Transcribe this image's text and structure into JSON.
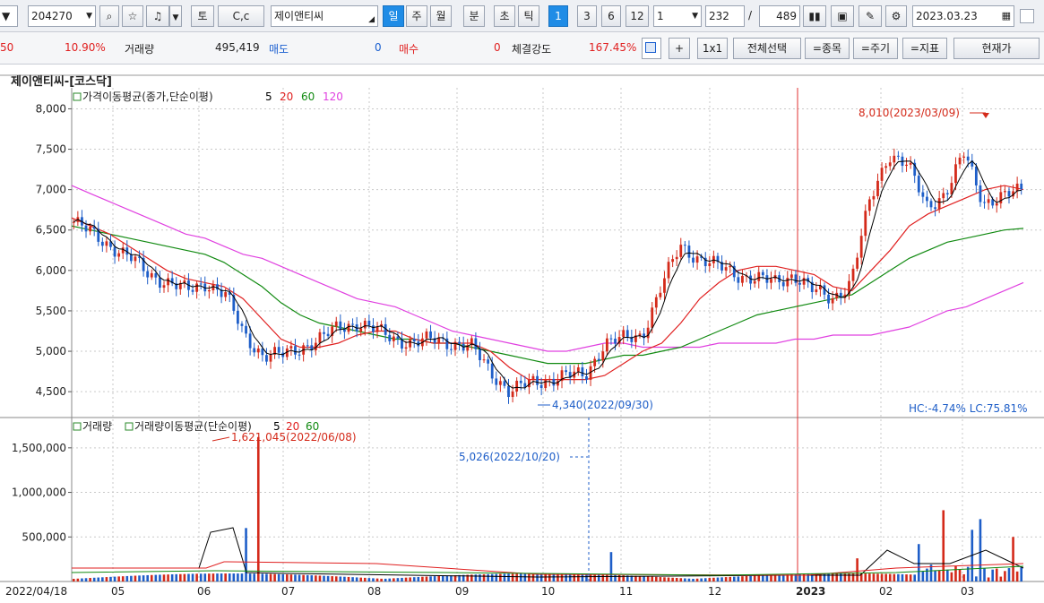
{
  "toolbar": {
    "code": "204270",
    "btn_t": "토",
    "btn_cc": "C,c",
    "stock_name": "제이앤티씨",
    "periods": [
      "일",
      "주",
      "월",
      "분",
      "초",
      "틱"
    ],
    "intervals": [
      "1",
      "3",
      "6",
      "12"
    ],
    "step": "1",
    "count": "232",
    "sep": "/",
    "total": "489",
    "date": "2023.03.23"
  },
  "quote": {
    "prev": "50",
    "rate": "10.90%",
    "vol_label": "거래량",
    "vol": "495,419",
    "sell_label": "매도",
    "sell": "0",
    "buy_label": "매수",
    "buy": "0",
    "strength_label": "체결강도",
    "strength": "167.45%",
    "btn_plus": "+",
    "btn_1x1": "1x1",
    "btn_all": "전체선택",
    "btn_item": "=종목",
    "btn_period": "=주기",
    "btn_indicator": "=지표",
    "btn_price": "현재가"
  },
  "chart_title": "제이앤티씨-[코스닥]",
  "colors": {
    "up": "#d42a1a",
    "down": "#1e5ec8",
    "ma5": "#000000",
    "ma20": "#e02020",
    "ma60": "#118a11",
    "ma120": "#e040e0"
  },
  "chart_data": [
    {
      "type": "candlestick",
      "legend_label": "가격이동평균(종가,단순이평)",
      "ma_periods": [
        "5",
        "20",
        "60",
        "120"
      ],
      "y_ticks": [
        8000,
        7500,
        7000,
        6500,
        6000,
        5500,
        5000,
        4500
      ],
      "y_tick_labels": [
        "8,000",
        "7,500",
        "7,000",
        "6,500",
        "6,000",
        "5,500",
        "5,000",
        "4,500"
      ],
      "ylim": [
        4180,
        8260
      ],
      "x_labels": [
        "2022/04/18",
        "05",
        "06",
        "07",
        "08",
        "09",
        "10",
        "11",
        "12",
        "2023",
        "02",
        "03"
      ],
      "close_series": [
        6600,
        6450,
        6300,
        6150,
        5950,
        5850,
        5750,
        5850,
        5700,
        5200,
        4950,
        4950,
        5050,
        5150,
        5300,
        5350,
        5250,
        5150,
        5100,
        5150,
        5100,
        5050,
        4750,
        4500,
        4600,
        4650,
        4700,
        4700,
        5100,
        5150,
        5200,
        5800,
        6300,
        6150,
        6050,
        5950,
        5900,
        5850,
        5950,
        5750,
        5650,
        5850,
        6850,
        7450,
        7300,
        6800,
        6950,
        7450,
        6850,
        6900,
        7000
      ],
      "ma20_series": [
        6650,
        6550,
        6450,
        6300,
        6150,
        6000,
        5900,
        5850,
        5800,
        5650,
        5400,
        5150,
        5050,
        5050,
        5100,
        5200,
        5250,
        5250,
        5150,
        5100,
        5100,
        5100,
        5000,
        4800,
        4650,
        4650,
        4650,
        4650,
        4700,
        4850,
        5000,
        5100,
        5350,
        5650,
        5850,
        6000,
        6050,
        6050,
        6000,
        5950,
        5800,
        5750,
        6000,
        6250,
        6550,
        6700,
        6800,
        6900,
        7000,
        7050,
        7000
      ],
      "ma60_series": [
        6550,
        6500,
        6450,
        6400,
        6350,
        6300,
        6250,
        6200,
        6100,
        5950,
        5800,
        5600,
        5450,
        5350,
        5300,
        5250,
        5200,
        5150,
        5150,
        5100,
        5100,
        5050,
        5000,
        4950,
        4900,
        4850,
        4850,
        4850,
        4900,
        4950,
        4950,
        5000,
        5050,
        5150,
        5250,
        5350,
        5450,
        5500,
        5550,
        5600,
        5650,
        5700,
        5850,
        6000,
        6150,
        6250,
        6350,
        6400,
        6450,
        6500,
        6520
      ],
      "ma120_series": [
        7050,
        6950,
        6850,
        6750,
        6650,
        6550,
        6450,
        6400,
        6300,
        6200,
        6150,
        6050,
        5950,
        5850,
        5750,
        5650,
        5600,
        5550,
        5450,
        5350,
        5250,
        5200,
        5150,
        5100,
        5050,
        5000,
        5000,
        5050,
        5100,
        5100,
        5050,
        5050,
        5050,
        5050,
        5100,
        5100,
        5100,
        5100,
        5150,
        5150,
        5200,
        5200,
        5200,
        5250,
        5300,
        5400,
        5500,
        5550,
        5650,
        5750,
        5850
      ],
      "annotations": {
        "high": "8,010(2023/03/09)",
        "low": "4,340(2022/09/30)",
        "hc_lc": "HC:-4.74%  LC:75.81%"
      }
    },
    {
      "type": "bar",
      "legend_label1": "거래량",
      "legend_label2": "거래량이동평균(단순이평)",
      "ma_periods": [
        "5",
        "20",
        "60"
      ],
      "y_ticks": [
        1500000,
        1000000,
        500000
      ],
      "y_tick_labels": [
        "1,500,000",
        "1,000,000",
        "500,000"
      ],
      "ylim": [
        0,
        1800000
      ],
      "annotations": {
        "peak": "1,621,045(2022/06/08)",
        "cursor": "5,026(2022/10/20)"
      }
    }
  ]
}
